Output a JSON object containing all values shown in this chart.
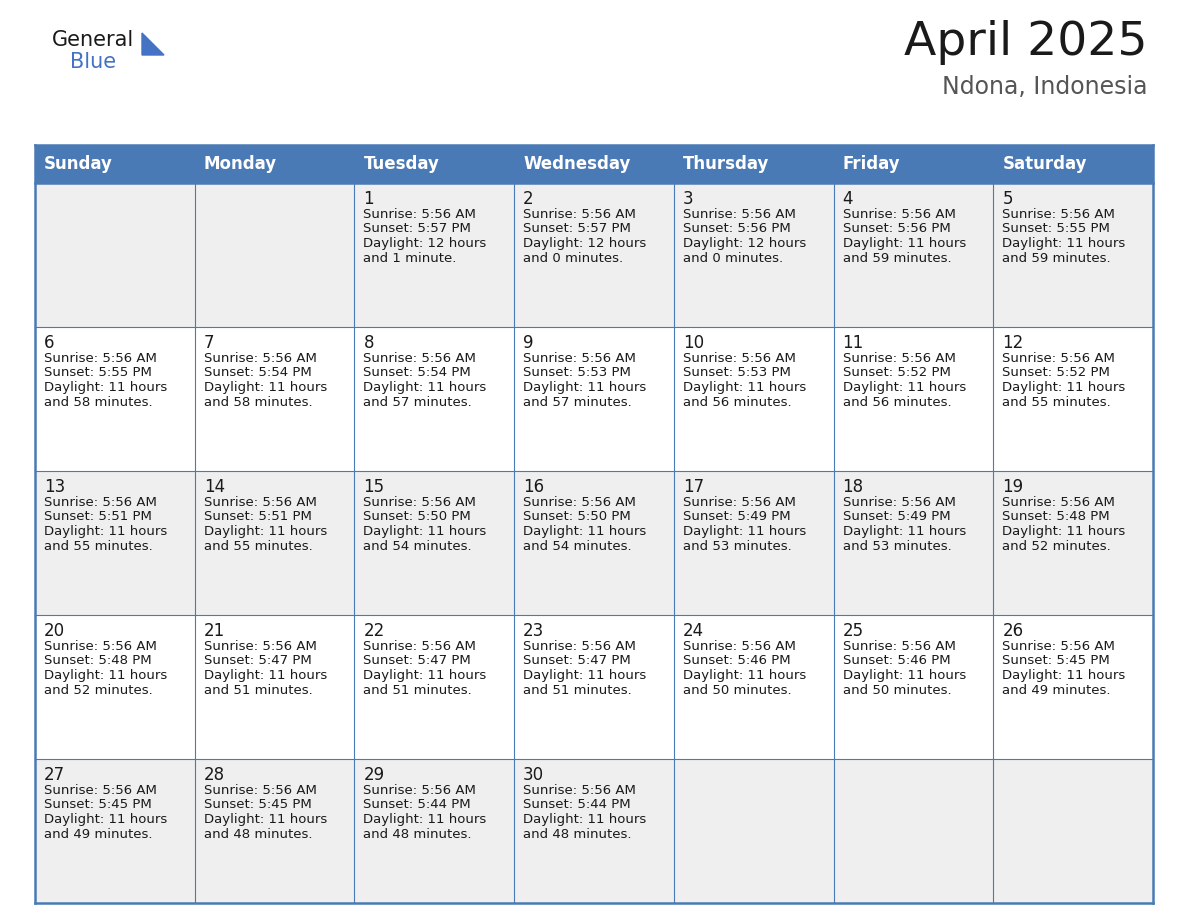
{
  "title": "April 2025",
  "subtitle": "Ndona, Indonesia",
  "header_color": "#4a7ab5",
  "header_text_color": "#FFFFFF",
  "background_color": "#FFFFFF",
  "row_colors": [
    "#efefef",
    "#ffffff",
    "#efefef",
    "#ffffff",
    "#efefef"
  ],
  "grid_color": "#4a7ab5",
  "text_color": "#1a1a1a",
  "day_headers": [
    "Sunday",
    "Monday",
    "Tuesday",
    "Wednesday",
    "Thursday",
    "Friday",
    "Saturday"
  ],
  "days": [
    {
      "day": 1,
      "col": 2,
      "row": 0,
      "sunrise": "5:56 AM",
      "sunset": "5:57 PM",
      "daylight_l1": "Daylight: 12 hours",
      "daylight_l2": "and 1 minute."
    },
    {
      "day": 2,
      "col": 3,
      "row": 0,
      "sunrise": "5:56 AM",
      "sunset": "5:57 PM",
      "daylight_l1": "Daylight: 12 hours",
      "daylight_l2": "and 0 minutes."
    },
    {
      "day": 3,
      "col": 4,
      "row": 0,
      "sunrise": "5:56 AM",
      "sunset": "5:56 PM",
      "daylight_l1": "Daylight: 12 hours",
      "daylight_l2": "and 0 minutes."
    },
    {
      "day": 4,
      "col": 5,
      "row": 0,
      "sunrise": "5:56 AM",
      "sunset": "5:56 PM",
      "daylight_l1": "Daylight: 11 hours",
      "daylight_l2": "and 59 minutes."
    },
    {
      "day": 5,
      "col": 6,
      "row": 0,
      "sunrise": "5:56 AM",
      "sunset": "5:55 PM",
      "daylight_l1": "Daylight: 11 hours",
      "daylight_l2": "and 59 minutes."
    },
    {
      "day": 6,
      "col": 0,
      "row": 1,
      "sunrise": "5:56 AM",
      "sunset": "5:55 PM",
      "daylight_l1": "Daylight: 11 hours",
      "daylight_l2": "and 58 minutes."
    },
    {
      "day": 7,
      "col": 1,
      "row": 1,
      "sunrise": "5:56 AM",
      "sunset": "5:54 PM",
      "daylight_l1": "Daylight: 11 hours",
      "daylight_l2": "and 58 minutes."
    },
    {
      "day": 8,
      "col": 2,
      "row": 1,
      "sunrise": "5:56 AM",
      "sunset": "5:54 PM",
      "daylight_l1": "Daylight: 11 hours",
      "daylight_l2": "and 57 minutes."
    },
    {
      "day": 9,
      "col": 3,
      "row": 1,
      "sunrise": "5:56 AM",
      "sunset": "5:53 PM",
      "daylight_l1": "Daylight: 11 hours",
      "daylight_l2": "and 57 minutes."
    },
    {
      "day": 10,
      "col": 4,
      "row": 1,
      "sunrise": "5:56 AM",
      "sunset": "5:53 PM",
      "daylight_l1": "Daylight: 11 hours",
      "daylight_l2": "and 56 minutes."
    },
    {
      "day": 11,
      "col": 5,
      "row": 1,
      "sunrise": "5:56 AM",
      "sunset": "5:52 PM",
      "daylight_l1": "Daylight: 11 hours",
      "daylight_l2": "and 56 minutes."
    },
    {
      "day": 12,
      "col": 6,
      "row": 1,
      "sunrise": "5:56 AM",
      "sunset": "5:52 PM",
      "daylight_l1": "Daylight: 11 hours",
      "daylight_l2": "and 55 minutes."
    },
    {
      "day": 13,
      "col": 0,
      "row": 2,
      "sunrise": "5:56 AM",
      "sunset": "5:51 PM",
      "daylight_l1": "Daylight: 11 hours",
      "daylight_l2": "and 55 minutes."
    },
    {
      "day": 14,
      "col": 1,
      "row": 2,
      "sunrise": "5:56 AM",
      "sunset": "5:51 PM",
      "daylight_l1": "Daylight: 11 hours",
      "daylight_l2": "and 55 minutes."
    },
    {
      "day": 15,
      "col": 2,
      "row": 2,
      "sunrise": "5:56 AM",
      "sunset": "5:50 PM",
      "daylight_l1": "Daylight: 11 hours",
      "daylight_l2": "and 54 minutes."
    },
    {
      "day": 16,
      "col": 3,
      "row": 2,
      "sunrise": "5:56 AM",
      "sunset": "5:50 PM",
      "daylight_l1": "Daylight: 11 hours",
      "daylight_l2": "and 54 minutes."
    },
    {
      "day": 17,
      "col": 4,
      "row": 2,
      "sunrise": "5:56 AM",
      "sunset": "5:49 PM",
      "daylight_l1": "Daylight: 11 hours",
      "daylight_l2": "and 53 minutes."
    },
    {
      "day": 18,
      "col": 5,
      "row": 2,
      "sunrise": "5:56 AM",
      "sunset": "5:49 PM",
      "daylight_l1": "Daylight: 11 hours",
      "daylight_l2": "and 53 minutes."
    },
    {
      "day": 19,
      "col": 6,
      "row": 2,
      "sunrise": "5:56 AM",
      "sunset": "5:48 PM",
      "daylight_l1": "Daylight: 11 hours",
      "daylight_l2": "and 52 minutes."
    },
    {
      "day": 20,
      "col": 0,
      "row": 3,
      "sunrise": "5:56 AM",
      "sunset": "5:48 PM",
      "daylight_l1": "Daylight: 11 hours",
      "daylight_l2": "and 52 minutes."
    },
    {
      "day": 21,
      "col": 1,
      "row": 3,
      "sunrise": "5:56 AM",
      "sunset": "5:47 PM",
      "daylight_l1": "Daylight: 11 hours",
      "daylight_l2": "and 51 minutes."
    },
    {
      "day": 22,
      "col": 2,
      "row": 3,
      "sunrise": "5:56 AM",
      "sunset": "5:47 PM",
      "daylight_l1": "Daylight: 11 hours",
      "daylight_l2": "and 51 minutes."
    },
    {
      "day": 23,
      "col": 3,
      "row": 3,
      "sunrise": "5:56 AM",
      "sunset": "5:47 PM",
      "daylight_l1": "Daylight: 11 hours",
      "daylight_l2": "and 51 minutes."
    },
    {
      "day": 24,
      "col": 4,
      "row": 3,
      "sunrise": "5:56 AM",
      "sunset": "5:46 PM",
      "daylight_l1": "Daylight: 11 hours",
      "daylight_l2": "and 50 minutes."
    },
    {
      "day": 25,
      "col": 5,
      "row": 3,
      "sunrise": "5:56 AM",
      "sunset": "5:46 PM",
      "daylight_l1": "Daylight: 11 hours",
      "daylight_l2": "and 50 minutes."
    },
    {
      "day": 26,
      "col": 6,
      "row": 3,
      "sunrise": "5:56 AM",
      "sunset": "5:45 PM",
      "daylight_l1": "Daylight: 11 hours",
      "daylight_l2": "and 49 minutes."
    },
    {
      "day": 27,
      "col": 0,
      "row": 4,
      "sunrise": "5:56 AM",
      "sunset": "5:45 PM",
      "daylight_l1": "Daylight: 11 hours",
      "daylight_l2": "and 49 minutes."
    },
    {
      "day": 28,
      "col": 1,
      "row": 4,
      "sunrise": "5:56 AM",
      "sunset": "5:45 PM",
      "daylight_l1": "Daylight: 11 hours",
      "daylight_l2": "and 48 minutes."
    },
    {
      "day": 29,
      "col": 2,
      "row": 4,
      "sunrise": "5:56 AM",
      "sunset": "5:44 PM",
      "daylight_l1": "Daylight: 11 hours",
      "daylight_l2": "and 48 minutes."
    },
    {
      "day": 30,
      "col": 3,
      "row": 4,
      "sunrise": "5:56 AM",
      "sunset": "5:44 PM",
      "daylight_l1": "Daylight: 11 hours",
      "daylight_l2": "and 48 minutes."
    }
  ],
  "num_rows": 5,
  "num_cols": 7
}
